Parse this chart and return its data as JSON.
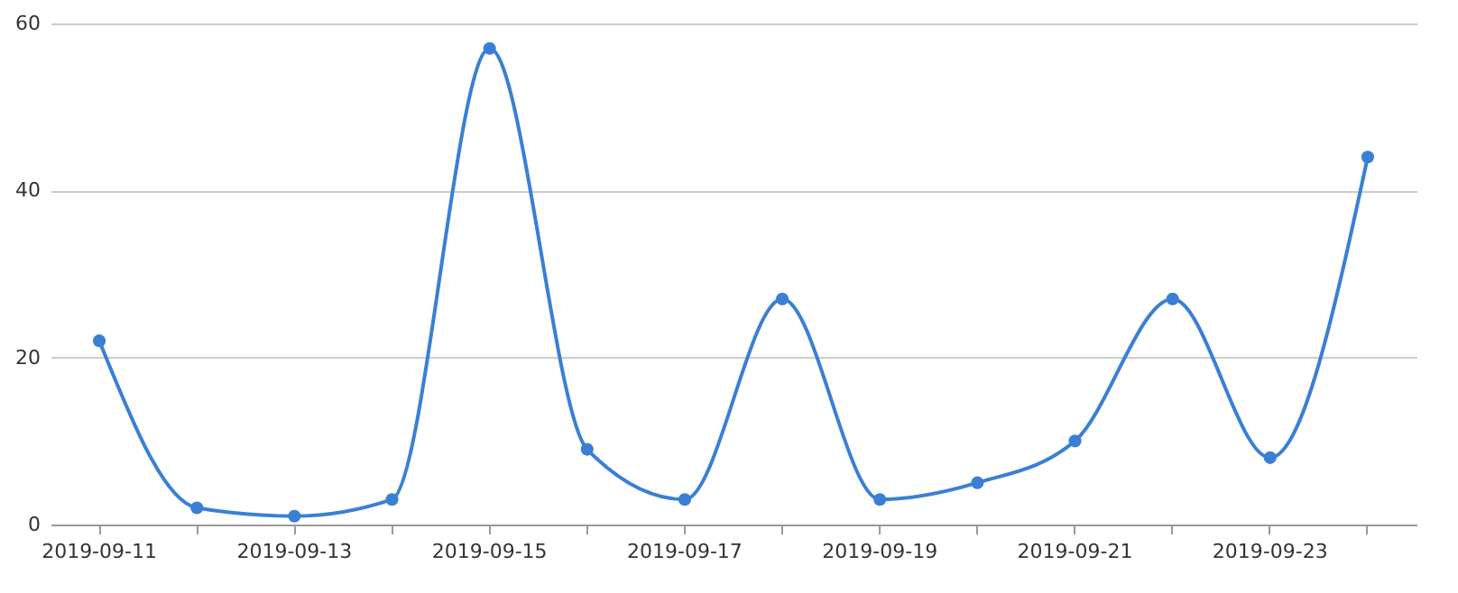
{
  "chart_data": {
    "type": "line",
    "categories": [
      "2019-09-11",
      null,
      "2019-09-13",
      null,
      "2019-09-15",
      null,
      "2019-09-17",
      null,
      "2019-09-19",
      null,
      "2019-09-21",
      null,
      "2019-09-23",
      null
    ],
    "series": [
      {
        "color": "#3a7fd5",
        "values": [
          22,
          2,
          1,
          3,
          57,
          9,
          3,
          27,
          3,
          5,
          10,
          27,
          8,
          44
        ]
      }
    ],
    "ylim": [
      0,
      60
    ],
    "yticks": [
      0,
      20,
      40,
      60
    ],
    "grid": "y",
    "marker": "circle",
    "line_style": "solid"
  }
}
